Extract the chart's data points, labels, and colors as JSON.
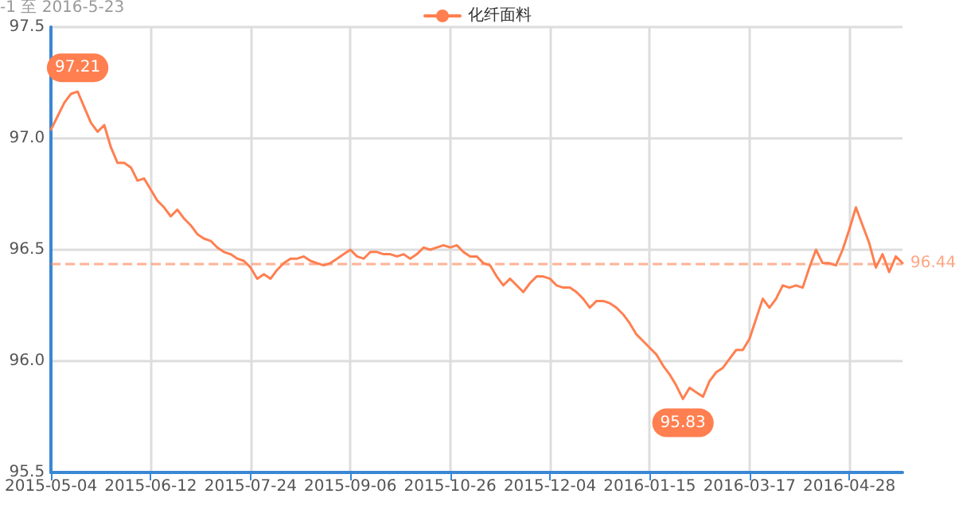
{
  "chart_data": {
    "type": "line",
    "title": "-1 至 2016-5-23",
    "categories": [
      "2015-05-04",
      null,
      null,
      null,
      null,
      null,
      null,
      null,
      null,
      null,
      null,
      null,
      null,
      null,
      null,
      "2015-06-12",
      null,
      null,
      null,
      null,
      null,
      null,
      null,
      null,
      null,
      null,
      null,
      null,
      null,
      null,
      "2015-07-24",
      null,
      null,
      null,
      null,
      null,
      null,
      null,
      null,
      null,
      null,
      null,
      null,
      null,
      null,
      "2015-09-06",
      null,
      null,
      null,
      null,
      null,
      null,
      null,
      null,
      null,
      null,
      null,
      null,
      null,
      null,
      "2015-10-26",
      null,
      null,
      null,
      null,
      null,
      null,
      null,
      null,
      null,
      null,
      null,
      null,
      null,
      null,
      "2015-12-04",
      null,
      null,
      null,
      null,
      null,
      null,
      null,
      null,
      null,
      null,
      null,
      null,
      null,
      null,
      "2016-01-15",
      null,
      null,
      null,
      null,
      null,
      null,
      null,
      null,
      null,
      null,
      null,
      null,
      null,
      null,
      "2016-03-17",
      null,
      null,
      null,
      null,
      null,
      null,
      null,
      null,
      null,
      null,
      null,
      null,
      null,
      null,
      "2016-04-28",
      null,
      null,
      null,
      null,
      null,
      null,
      null,
      null
    ],
    "series": [
      {
        "name": "化纤面料",
        "color": "#ff7f50",
        "values": [
          97.04,
          97.1,
          97.16,
          97.2,
          97.21,
          97.14,
          97.07,
          97.03,
          97.06,
          96.96,
          96.89,
          96.89,
          96.87,
          96.81,
          96.82,
          96.77,
          96.72,
          96.69,
          96.65,
          96.68,
          96.64,
          96.61,
          96.57,
          96.55,
          96.54,
          96.51,
          96.49,
          96.48,
          96.46,
          96.45,
          96.42,
          96.37,
          96.39,
          96.37,
          96.41,
          96.44,
          96.46,
          96.46,
          96.47,
          96.45,
          96.44,
          96.43,
          96.44,
          96.46,
          96.48,
          96.5,
          96.47,
          96.46,
          96.49,
          96.49,
          96.48,
          96.48,
          96.47,
          96.48,
          96.46,
          96.48,
          96.51,
          96.5,
          96.51,
          96.52,
          96.51,
          96.52,
          96.49,
          96.47,
          96.47,
          96.44,
          96.43,
          96.38,
          96.34,
          96.37,
          96.34,
          96.31,
          96.35,
          96.38,
          96.38,
          96.37,
          96.34,
          96.33,
          96.33,
          96.31,
          96.28,
          96.24,
          96.27,
          96.27,
          96.26,
          96.24,
          96.21,
          96.17,
          96.12,
          96.09,
          96.06,
          96.03,
          95.98,
          95.94,
          95.89,
          95.83,
          95.88,
          95.86,
          95.84,
          95.91,
          95.95,
          95.97,
          96.01,
          96.05,
          96.05,
          96.1,
          96.19,
          96.28,
          96.24,
          96.28,
          96.34,
          96.33,
          96.34,
          96.33,
          96.42,
          96.5,
          96.44,
          96.44,
          96.43,
          96.5,
          96.59,
          96.69,
          96.61,
          96.53,
          96.42,
          96.48,
          96.4,
          96.47,
          96.44
        ]
      }
    ],
    "ylim": [
      95.5,
      97.5
    ],
    "yticks": [
      95.5,
      {
        "value": 96,
        "label": "96.0"
      },
      96.5,
      {
        "value": 97,
        "label": "97.0"
      },
      97.5
    ],
    "annotations": [
      {
        "text": "97.21",
        "y": 97.21
      },
      {
        "text": "95.83",
        "y": 95.83
      }
    ],
    "ref_lines": [
      {
        "axis": "y",
        "value": 96.44,
        "label": "96.44",
        "color": "#ff7f50",
        "line_style": "dashed"
      }
    ],
    "grid": true,
    "legend": "top",
    "marker": "none",
    "line_style": "solid"
  }
}
